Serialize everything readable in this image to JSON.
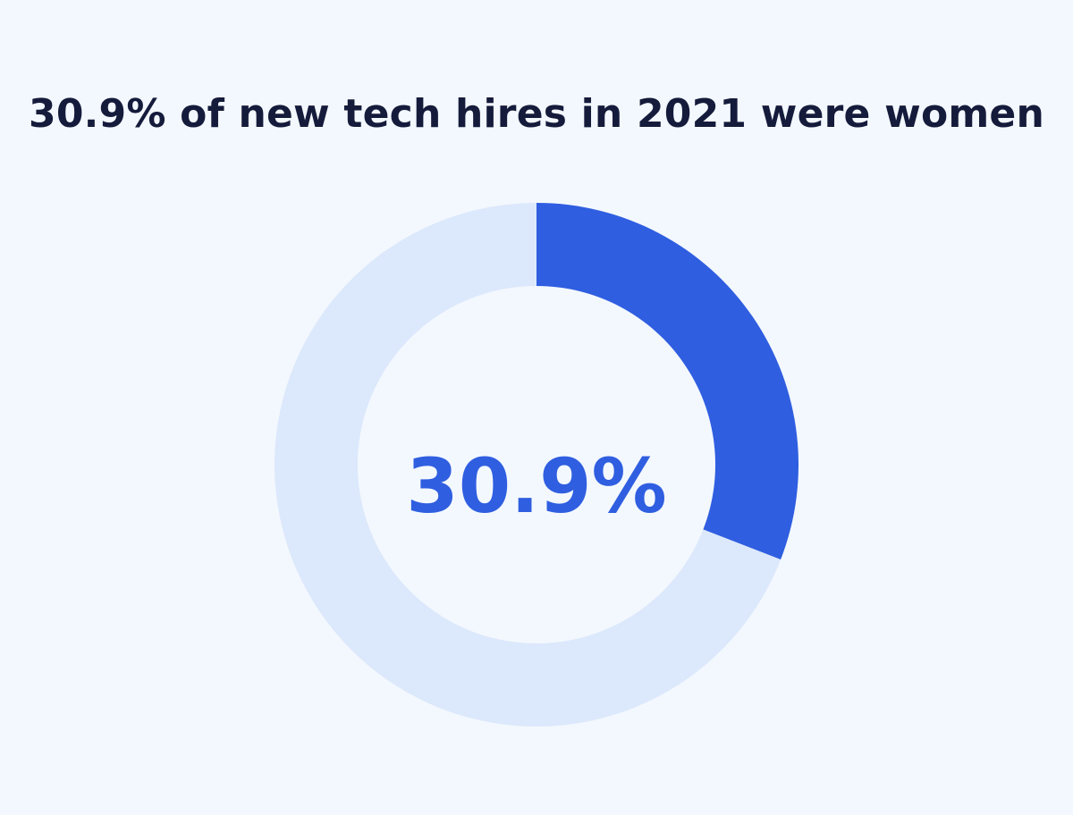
{
  "chart_data": {
    "type": "pie",
    "title": "30.9% of new tech hires in 2021 were women",
    "slices": [
      {
        "value": 30.9,
        "color": "#2f5ee0"
      },
      {
        "value": 69.1,
        "color": "#dce8fb"
      }
    ],
    "center_label": "30.9%",
    "center_label_color": "#2f5ee0",
    "background": "#f3f8fe"
  }
}
